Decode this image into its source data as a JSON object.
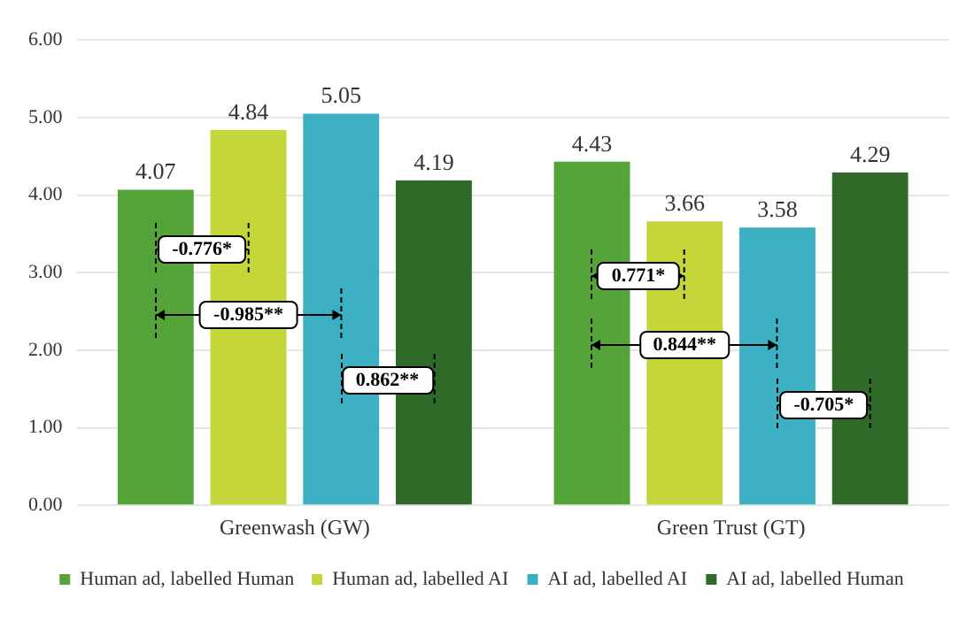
{
  "chart_data": {
    "type": "bar",
    "categories": [
      "Greenwash (GW)",
      "Green Trust (GT)"
    ],
    "series": [
      {
        "name": "Human ad, labelled Human",
        "color": "#55a43a",
        "values": [
          4.07,
          4.43
        ]
      },
      {
        "name": "Human ad, labelled AI",
        "color": "#c4d63a",
        "values": [
          4.84,
          3.66
        ]
      },
      {
        "name": "AI ad, labelled AI",
        "color": "#3cb0c2",
        "values": [
          5.05,
          3.58
        ]
      },
      {
        "name": "AI ad, labelled Human",
        "color": "#2f6a28",
        "values": [
          4.19,
          4.29
        ]
      }
    ],
    "ylim": [
      0,
      6
    ],
    "yticks": [
      {
        "value": 0,
        "label": "0.00"
      },
      {
        "value": 1,
        "label": "1.00"
      },
      {
        "value": 2,
        "label": "2.00"
      },
      {
        "value": 3,
        "label": "3.00"
      },
      {
        "value": 4,
        "label": "4.00"
      },
      {
        "value": 5,
        "label": "5.00"
      },
      {
        "value": 6,
        "label": "6.00"
      }
    ],
    "data_labels": true,
    "grid": "y",
    "legend": "bottom",
    "annotations": [
      "-0.776*",
      "-0.985**",
      "0.862**",
      "0.771*",
      "0.844**",
      "-0.705*"
    ]
  }
}
